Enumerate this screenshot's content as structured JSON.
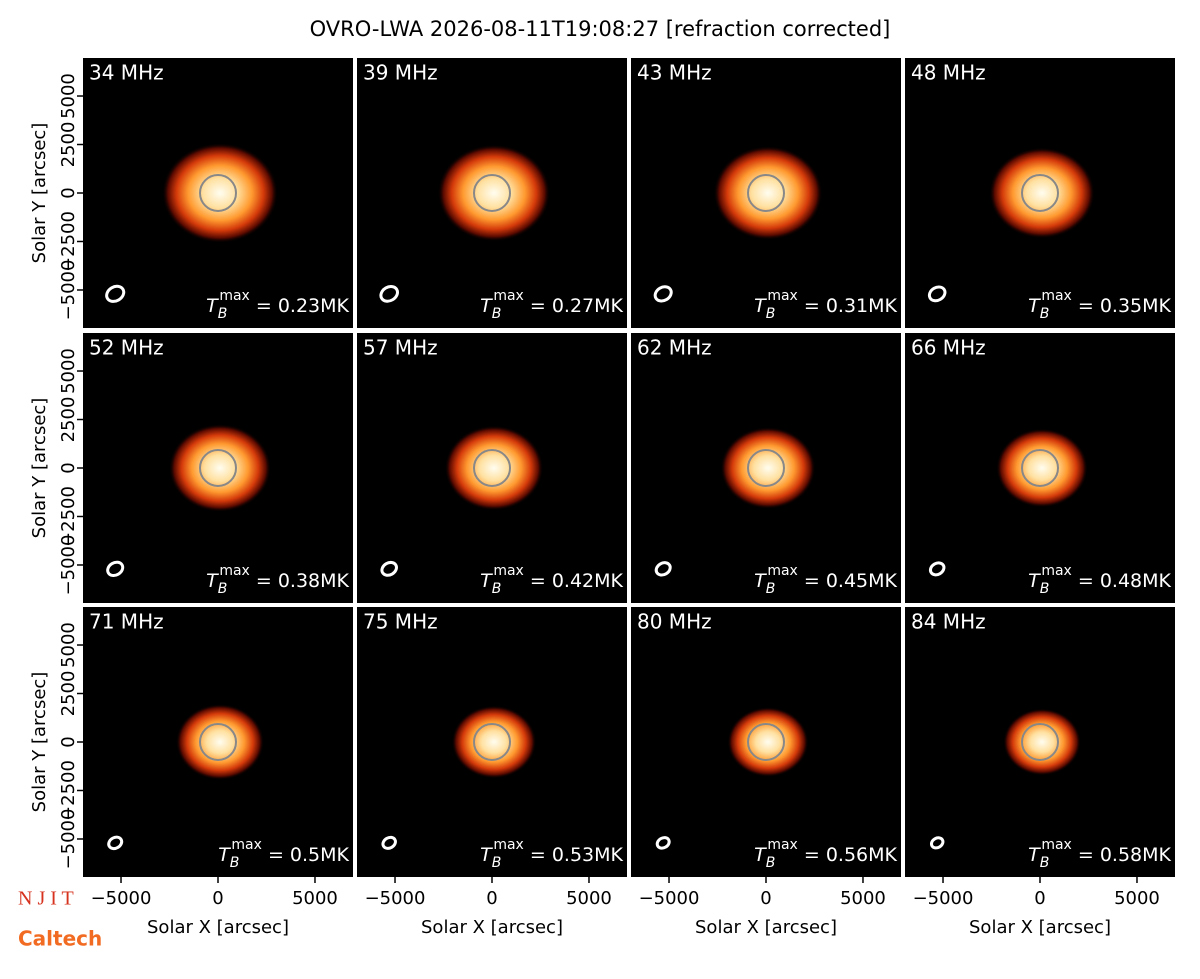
{
  "chart_data": {
    "type": "image_grid",
    "title": "OVRO-LWA 2026-08-11T19:08:27 [refraction corrected]",
    "xlabel": "Solar X [arcsec]",
    "ylabel": "Solar Y [arcsec]",
    "xlim": [
      -6960,
      6960
    ],
    "ylim": [
      -6960,
      6960
    ],
    "xticks": [
      {
        "value": -5000,
        "label": "−5000"
      },
      0,
      5000
    ],
    "yticks": [
      {
        "value": -5000,
        "label": "−5000"
      },
      {
        "value": -2500,
        "label": "−2500"
      },
      0,
      2500,
      5000
    ],
    "tb_symbol": "T",
    "tb_sub": "B",
    "tb_sup": "max",
    "panels": [
      {
        "label": "34 MHz",
        "tb_text": " = 0.23MK"
      },
      {
        "label": "39 MHz",
        "tb_text": " = 0.27MK"
      },
      {
        "label": "43 MHz",
        "tb_text": " = 0.31MK"
      },
      {
        "label": "48 MHz",
        "tb_text": " = 0.35MK"
      },
      {
        "label": "52 MHz",
        "tb_text": " = 0.38MK"
      },
      {
        "label": "57 MHz",
        "tb_text": " = 0.42MK"
      },
      {
        "label": "62 MHz",
        "tb_text": " = 0.45MK"
      },
      {
        "label": "66 MHz",
        "tb_text": " = 0.48MK"
      },
      {
        "label": "71 MHz",
        "tb_text": " = 0.5MK"
      },
      {
        "label": "75 MHz",
        "tb_text": " = 0.53MK"
      },
      {
        "label": "80 MHz",
        "tb_text": " = 0.56MK"
      },
      {
        "label": "84 MHz",
        "tb_text": " = 0.58MK"
      }
    ],
    "logos": [
      "N J I T",
      "Caltech"
    ]
  }
}
